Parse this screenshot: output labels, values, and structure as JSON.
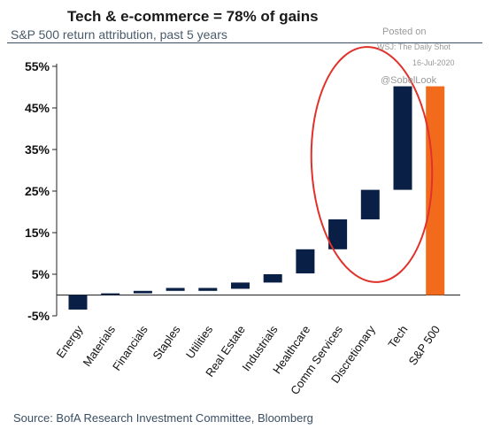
{
  "header": {
    "title": "Tech & e-commerce = 78% of gains",
    "subtitle": "S&P 500 return attribution, past 5 years"
  },
  "watermark": {
    "line1": "Posted on",
    "line2": "WSJ: The Daily Shot",
    "line3": "16-Jul-2020",
    "line4": "@SobelLook"
  },
  "footer": {
    "source": "Source: BofA Research Investment Committee, Bloomberg"
  },
  "colors": {
    "bar": "#0a1f45",
    "total": "#f26a1b",
    "ellipse": "#e0322b"
  },
  "chart_data": {
    "type": "bar",
    "subtype": "waterfall",
    "categories": [
      "Energy",
      "Materials",
      "Financials",
      "Staples",
      "Utilities",
      "Real Estate",
      "Industrials",
      "Healthcare",
      "Comm Services",
      "Discretionary",
      "Tech",
      "S&P 500"
    ],
    "ranges": [
      [
        -3.5,
        0
      ],
      [
        0,
        0.4
      ],
      [
        0.4,
        1.0
      ],
      [
        1.0,
        1.7
      ],
      [
        1.0,
        1.7
      ],
      [
        1.5,
        3.0
      ],
      [
        3.0,
        5.0
      ],
      [
        5.2,
        11.0
      ],
      [
        11.0,
        18.2
      ],
      [
        18.2,
        25.3
      ],
      [
        25.3,
        50.2
      ],
      [
        0,
        50.2
      ]
    ],
    "ylim": [
      -5,
      55
    ],
    "yticks": [
      -5,
      5,
      15,
      25,
      35,
      45,
      55
    ],
    "ytick_labels": [
      "-5%",
      "5%",
      "15%",
      "25%",
      "35%",
      "45%",
      "55%"
    ],
    "highlight": "red ellipse around Comm Services, Discretionary, Tech",
    "grid": false
  }
}
